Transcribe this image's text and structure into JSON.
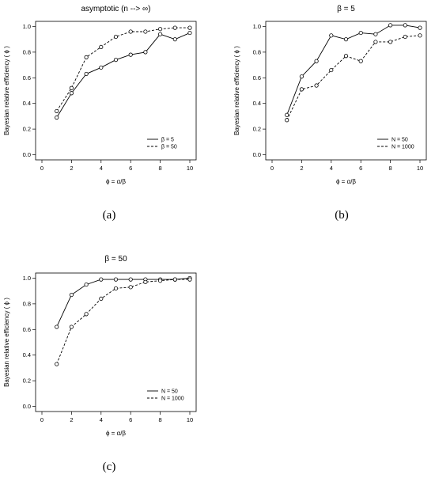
{
  "chart_data": [
    {
      "panel_label": "(a)",
      "type": "line",
      "title": "asymptotic (n --> ∞)",
      "xlabel": "ϕ = α/β",
      "ylabel": "Bayesian relative efficiency  ( ϕ )",
      "xlim": [
        0,
        10
      ],
      "ylim": [
        0,
        1
      ],
      "xticks": [
        "0",
        "2",
        "4",
        "6",
        "8",
        "10"
      ],
      "yticks": [
        "0.0",
        "0.2",
        "0.4",
        "0.6",
        "0.8",
        "1.0"
      ],
      "x": [
        1,
        2,
        3,
        4,
        5,
        6,
        7,
        8,
        9,
        10
      ],
      "series": [
        {
          "name": "β = 5",
          "style": "solid",
          "values": [
            0.29,
            0.48,
            0.63,
            0.68,
            0.74,
            0.78,
            0.8,
            0.94,
            0.9,
            0.95
          ]
        },
        {
          "name": "β = 50",
          "style": "dashed",
          "values": [
            0.34,
            0.52,
            0.76,
            0.84,
            0.92,
            0.96,
            0.96,
            0.98,
            0.99,
            0.99
          ]
        }
      ],
      "legend": "bottom-right"
    },
    {
      "panel_label": "(b)",
      "type": "line",
      "title": "β = 5",
      "xlabel": "ϕ = α/β",
      "ylabel": "Bayesian relative efficiency  ( ϕ )",
      "xlim": [
        0,
        10
      ],
      "ylim": [
        0,
        1
      ],
      "xticks": [
        "0",
        "2",
        "4",
        "6",
        "8",
        "10"
      ],
      "yticks": [
        "0.0",
        "0.2",
        "0.4",
        "0.6",
        "0.8",
        "1.0"
      ],
      "x": [
        1,
        2,
        3,
        4,
        5,
        6,
        7,
        8,
        9,
        10
      ],
      "series": [
        {
          "name": "N = 50",
          "style": "solid",
          "values": [
            0.31,
            0.61,
            0.73,
            0.93,
            0.9,
            0.95,
            0.94,
            1.01,
            1.01,
            0.99
          ]
        },
        {
          "name": "N = 1000",
          "style": "dashed",
          "values": [
            0.27,
            0.51,
            0.54,
            0.66,
            0.77,
            0.73,
            0.88,
            0.88,
            0.92,
            0.93
          ]
        }
      ],
      "legend": "bottom-right"
    },
    {
      "panel_label": "(c)",
      "type": "line",
      "title": "β = 50",
      "xlabel": "ϕ = α/β",
      "ylabel": "Bayesian relative efficiency  ( ϕ )",
      "xlim": [
        0,
        10
      ],
      "ylim": [
        0,
        1
      ],
      "xticks": [
        "0",
        "2",
        "4",
        "6",
        "8",
        "10"
      ],
      "yticks": [
        "0.0",
        "0.2",
        "0.4",
        "0.6",
        "0.8",
        "1.0"
      ],
      "x": [
        1,
        2,
        3,
        4,
        5,
        6,
        7,
        8,
        9,
        10
      ],
      "series": [
        {
          "name": "N = 50",
          "style": "solid",
          "values": [
            0.62,
            0.87,
            0.95,
            0.99,
            0.99,
            0.99,
            0.99,
            0.99,
            0.99,
            1.0
          ]
        },
        {
          "name": "N = 1000",
          "style": "dashed",
          "values": [
            0.33,
            0.62,
            0.72,
            0.84,
            0.92,
            0.93,
            0.97,
            0.98,
            0.99,
            0.99
          ]
        }
      ],
      "legend": "bottom-right"
    }
  ]
}
